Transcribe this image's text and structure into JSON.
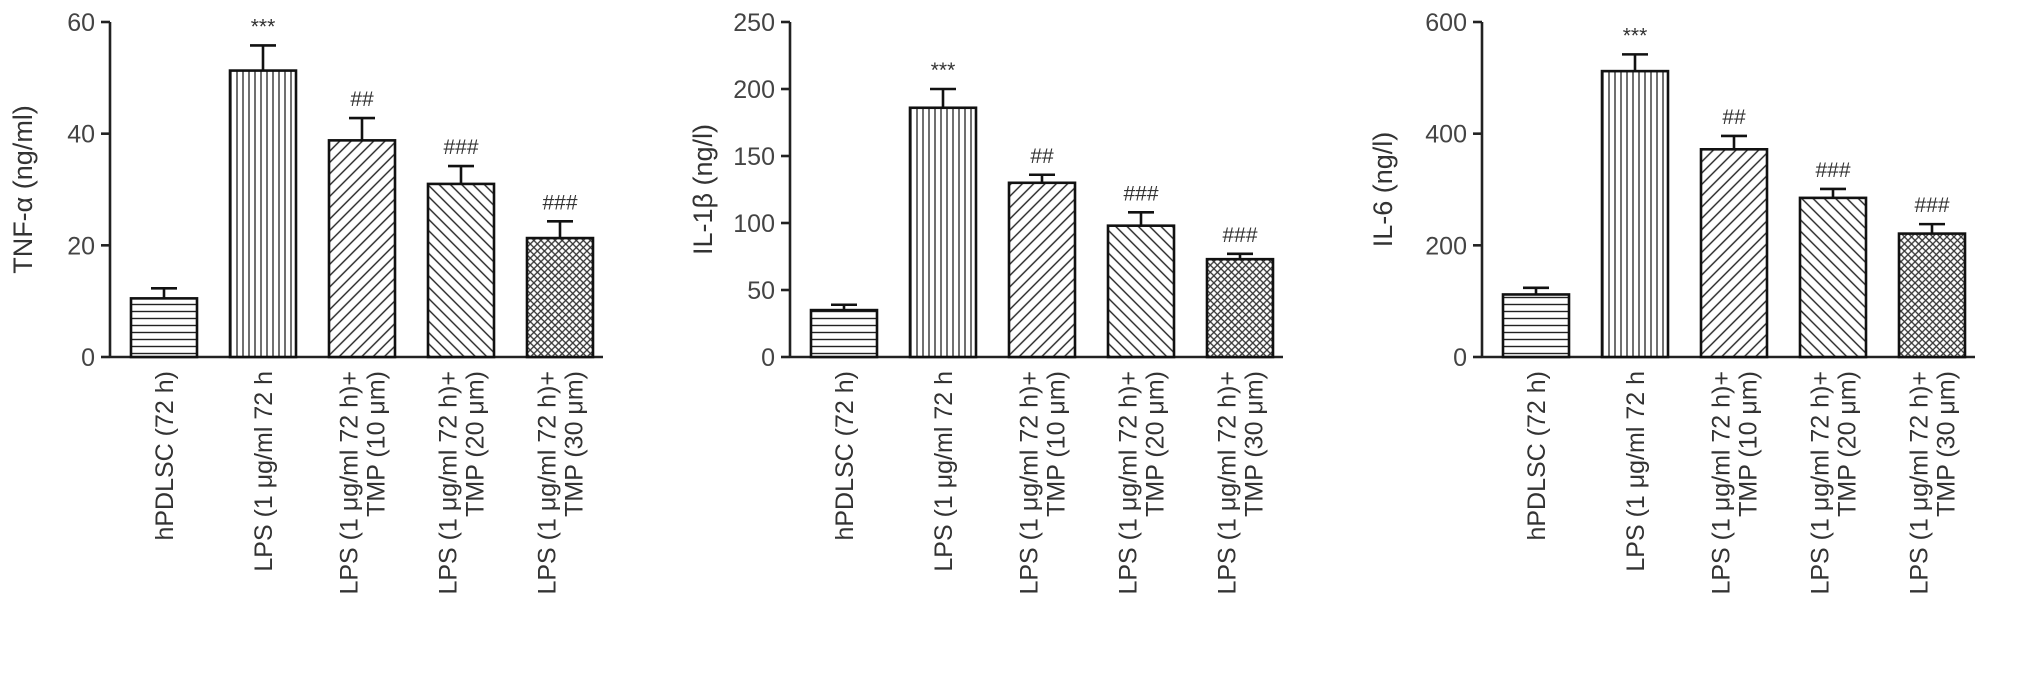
{
  "chart_data": [
    {
      "type": "bar",
      "ylabel": "TNF-α (ng/ml)",
      "ylim": [
        0,
        60
      ],
      "yticks": [
        0,
        20,
        40,
        60
      ],
      "categories": [
        [
          "hPDLSC (72 h)"
        ],
        [
          "LPS (1 μg/ml 72 h"
        ],
        [
          "LPS (1 μg/ml 72 h)+",
          "TMP (10 μm)"
        ],
        [
          "LPS (1 μg/ml 72 h)+",
          "TMP (20 μm)"
        ],
        [
          "LPS (1 μg/ml 72 h)+",
          "TMP (30 μm)"
        ]
      ],
      "values": [
        10.5,
        51.3,
        38.8,
        31.0,
        21.3
      ],
      "errors": [
        1.8,
        4.5,
        4.0,
        3.2,
        3.0
      ],
      "annotations": [
        "",
        "***",
        "##",
        "###",
        "###"
      ],
      "patterns": [
        "hlines",
        "vlines",
        "diag-right",
        "diag-left",
        "crosshatch"
      ],
      "grid": false
    },
    {
      "type": "bar",
      "ylabel": "IL-1β (ng/l)",
      "ylim": [
        0,
        250
      ],
      "yticks": [
        0,
        50,
        100,
        150,
        200,
        250
      ],
      "categories": [
        [
          "hPDLSC (72 h)"
        ],
        [
          "LPS (1 μg/ml 72 h"
        ],
        [
          "LPS (1 μg/ml 72 h)+",
          "TMP (10 μm)"
        ],
        [
          "LPS (1 μg/ml 72 h)+",
          "TMP (20 μm)"
        ],
        [
          "LPS (1 μg/ml 72 h)+",
          "TMP (30 μm)"
        ]
      ],
      "values": [
        35,
        186,
        130,
        98,
        73
      ],
      "errors": [
        4,
        14,
        6,
        10,
        4
      ],
      "annotations": [
        "",
        "***",
        "##",
        "###",
        "###"
      ],
      "patterns": [
        "hlines",
        "vlines",
        "diag-right",
        "diag-left",
        "crosshatch"
      ],
      "grid": false
    },
    {
      "type": "bar",
      "ylabel": "IL-6 (ng/l)",
      "ylim": [
        0,
        600
      ],
      "yticks": [
        0,
        200,
        400,
        600
      ],
      "categories": [
        [
          "hPDLSC (72 h)"
        ],
        [
          "LPS (1 μg/ml 72 h"
        ],
        [
          "LPS (1 μg/ml 72 h)+",
          "TMP (10 μm)"
        ],
        [
          "LPS (1 μg/ml 72 h)+",
          "TMP (20 μm)"
        ],
        [
          "LPS (1 μg/ml 72 h)+",
          "TMP (30 μm)"
        ]
      ],
      "values": [
        112,
        512,
        372,
        285,
        221
      ],
      "errors": [
        12,
        30,
        24,
        16,
        17
      ],
      "annotations": [
        "",
        "***",
        "##",
        "###",
        "###"
      ],
      "patterns": [
        "hlines",
        "vlines",
        "diag-right",
        "diag-left",
        "crosshatch"
      ],
      "grid": false
    }
  ]
}
